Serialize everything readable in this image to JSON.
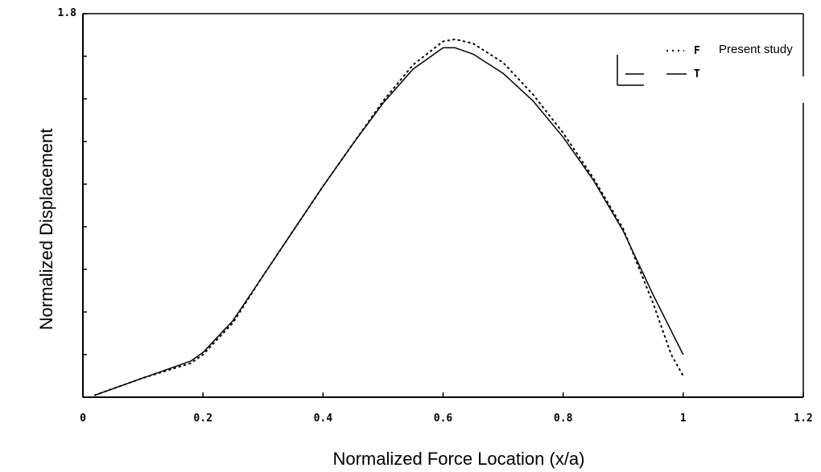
{
  "chart_data": {
    "type": "line",
    "title": "",
    "xlabel": "Normalized Force Location (x/a)",
    "ylabel": "Normalized Displacement",
    "xlim": [
      0,
      1.2
    ],
    "ylim": [
      0,
      1.8
    ],
    "x_ticks": [
      "0",
      "0.2",
      "0.4",
      "0.6",
      "0.8",
      "1",
      "1.2"
    ],
    "y_ticks": [
      "1.8"
    ],
    "grid": false,
    "legend_position": "top-right",
    "legend_header": "Present study",
    "series": [
      {
        "name": "F",
        "style": "dotted",
        "x": [
          0.02,
          0.1,
          0.18,
          0.2,
          0.25,
          0.3,
          0.35,
          0.4,
          0.45,
          0.5,
          0.55,
          0.6,
          0.62,
          0.65,
          0.7,
          0.75,
          0.8,
          0.85,
          0.9,
          0.95,
          0.98,
          1.0
        ],
        "y": [
          0.01,
          0.09,
          0.16,
          0.2,
          0.35,
          0.57,
          0.78,
          0.99,
          1.19,
          1.39,
          1.56,
          1.67,
          1.68,
          1.66,
          1.57,
          1.42,
          1.24,
          1.03,
          0.79,
          0.44,
          0.2,
          0.1
        ]
      },
      {
        "name": "T",
        "style": "solid",
        "x": [
          0.02,
          0.1,
          0.18,
          0.2,
          0.25,
          0.3,
          0.35,
          0.4,
          0.45,
          0.5,
          0.55,
          0.6,
          0.62,
          0.65,
          0.7,
          0.75,
          0.8,
          0.85,
          0.9,
          0.95,
          1.0
        ],
        "y": [
          0.01,
          0.09,
          0.17,
          0.21,
          0.36,
          0.57,
          0.78,
          0.99,
          1.19,
          1.38,
          1.54,
          1.64,
          1.64,
          1.61,
          1.52,
          1.39,
          1.22,
          1.02,
          0.78,
          0.48,
          0.2
        ]
      }
    ]
  }
}
